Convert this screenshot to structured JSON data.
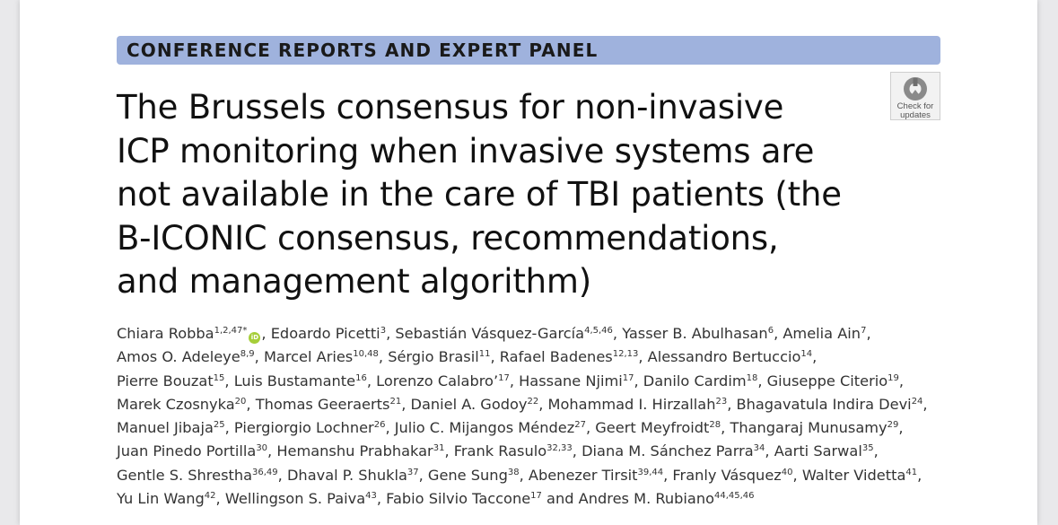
{
  "section_banner": "CONFERENCE REPORTS AND EXPERT PANEL",
  "check_updates": {
    "line1": "Check for",
    "line2": "updates"
  },
  "title_lines": [
    "The Brussels consensus for non-invasive",
    "ICP monitoring when invasive systems are",
    "not available in the care of TBI patients (the",
    "B-ICONIC consensus, recommendations,",
    "and management algorithm)"
  ],
  "orcid_icon": "orcid-icon",
  "orcid_label": "iD",
  "author_lines": [
    [
      {
        "name": "Chiara Robba",
        "sup": "1,2,47*",
        "orcid": true,
        "sep": ", "
      },
      {
        "name": "Edoardo Picetti",
        "sup": "3",
        "sep": ", "
      },
      {
        "name": "Sebastián Vásquez-García",
        "sup": "4,5,46",
        "sep": ", "
      },
      {
        "name": "Yasser B. Abulhasan",
        "sup": "6",
        "sep": ", "
      },
      {
        "name": "Amelia Ain",
        "sup": "7",
        "sep": ","
      }
    ],
    [
      {
        "name": "Amos O. Adeleye",
        "sup": "8,9",
        "sep": ", "
      },
      {
        "name": "Marcel Aries",
        "sup": "10,48",
        "sep": ", "
      },
      {
        "name": "Sérgio Brasil",
        "sup": "11",
        "sep": ", "
      },
      {
        "name": "Rafael Badenes",
        "sup": "12,13",
        "sep": ", "
      },
      {
        "name": "Alessandro Bertuccio",
        "sup": "14",
        "sep": ","
      }
    ],
    [
      {
        "name": "Pierre Bouzat",
        "sup": "15",
        "sep": ", "
      },
      {
        "name": "Luis Bustamante",
        "sup": "16",
        "sep": ", "
      },
      {
        "name": "Lorenzo Calabro’",
        "sup": "17",
        "sep": ", "
      },
      {
        "name": "Hassane Njimi",
        "sup": "17",
        "sep": ", "
      },
      {
        "name": "Danilo Cardim",
        "sup": "18",
        "sep": ", "
      },
      {
        "name": "Giuseppe Citerio",
        "sup": "19",
        "sep": ","
      }
    ],
    [
      {
        "name": "Marek Czosnyka",
        "sup": "20",
        "sep": ", "
      },
      {
        "name": "Thomas Geeraerts",
        "sup": "21",
        "sep": ", "
      },
      {
        "name": "Daniel A. Godoy",
        "sup": "22",
        "sep": ", "
      },
      {
        "name": "Mohammad I. Hirzallah",
        "sup": "23",
        "sep": ", "
      },
      {
        "name": "Bhagavatula Indira Devi",
        "sup": "24",
        "sep": ","
      }
    ],
    [
      {
        "name": "Manuel Jibaja",
        "sup": "25",
        "sep": ", "
      },
      {
        "name": "Piergiorgio Lochner",
        "sup": "26",
        "sep": ", "
      },
      {
        "name": "Julio C. Mijangos Méndez",
        "sup": "27",
        "sep": ", "
      },
      {
        "name": "Geert Meyfroidt",
        "sup": "28",
        "sep": ", "
      },
      {
        "name": "Thangaraj Munusamy",
        "sup": "29",
        "sep": ","
      }
    ],
    [
      {
        "name": "Juan Pinedo Portilla",
        "sup": "30",
        "sep": ", "
      },
      {
        "name": "Hemanshu Prabhakar",
        "sup": "31",
        "sep": ", "
      },
      {
        "name": "Frank Rasulo",
        "sup": "32,33",
        "sep": ", "
      },
      {
        "name": "Diana M. Sánchez Parra",
        "sup": "34",
        "sep": ", "
      },
      {
        "name": "Aarti Sarwal",
        "sup": "35",
        "sep": ","
      }
    ],
    [
      {
        "name": "Gentle S. Shrestha",
        "sup": "36,49",
        "sep": ", "
      },
      {
        "name": "Dhaval P. Shukla",
        "sup": "37",
        "sep": ", "
      },
      {
        "name": "Gene Sung",
        "sup": "38",
        "sep": ", "
      },
      {
        "name": "Abenezer Tirsit",
        "sup": "39,44",
        "sep": ", "
      },
      {
        "name": "Franly Vásquez",
        "sup": "40",
        "sep": ", "
      },
      {
        "name": "Walter Videtta",
        "sup": "41",
        "sep": ","
      }
    ],
    [
      {
        "name": "Yu Lin Wang",
        "sup": "42",
        "sep": ", "
      },
      {
        "name": "Wellingson S. Paiva",
        "sup": "43",
        "sep": ", "
      },
      {
        "name": "Fabio Silvio Taccone",
        "sup": "17",
        "sep": " and "
      },
      {
        "name": "Andres M. Rubiano",
        "sup": "44,45,46",
        "sep": ""
      }
    ]
  ]
}
